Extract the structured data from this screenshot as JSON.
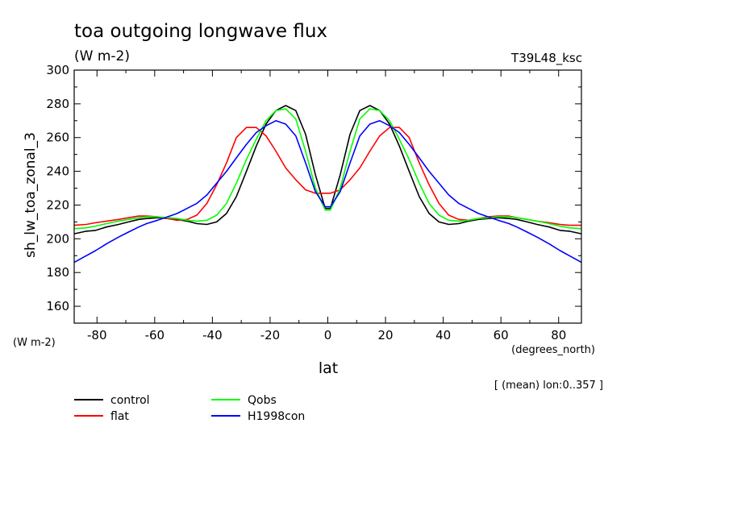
{
  "chart_data": {
    "type": "line",
    "title": "toa outgoing longwave flux",
    "units": "(W m-2)",
    "run_label": "T39L48_ksc",
    "ylabel": "sh_lw_toa_zonal_3",
    "y_units": "(W m-2)",
    "xlabel": "lat",
    "x_units": "(degrees_north)",
    "subtitle_note": "[ (mean) lon:0..357 ]",
    "xlim": [
      -87.9,
      87.9
    ],
    "ylim": [
      150,
      300
    ],
    "x_ticks": [
      -80,
      -60,
      -40,
      -20,
      0,
      20,
      40,
      60,
      80
    ],
    "y_ticks": [
      160,
      180,
      200,
      220,
      240,
      260,
      280,
      300
    ],
    "legend_position": "bottom-left",
    "x": [
      -87.9,
      -83.7,
      -80.5,
      -76.7,
      -72.5,
      -69.1,
      -65.5,
      -62.8,
      -59.0,
      -55.6,
      -52.2,
      -48.8,
      -45.4,
      -41.9,
      -38.5,
      -35.1,
      -31.7,
      -28.2,
      -24.8,
      -21.4,
      -18.0,
      -14.6,
      -11.1,
      -7.7,
      -4.3,
      -0.9,
      0.9,
      4.3,
      7.7,
      11.1,
      14.6,
      18.0,
      21.4,
      24.8,
      28.2,
      31.7,
      35.1,
      38.5,
      41.9,
      45.4,
      48.8,
      52.2,
      55.6,
      59.0,
      62.8,
      65.5,
      69.1,
      72.5,
      76.7,
      80.5,
      83.7,
      87.9
    ],
    "series": [
      {
        "name": "control",
        "color": "#000000",
        "values": [
          203,
          204.5,
          205,
          207,
          208.5,
          210,
          211.5,
          212,
          212.5,
          212,
          211.5,
          210.5,
          209,
          208.5,
          210,
          215,
          225,
          240,
          255,
          268,
          276,
          279,
          276,
          262,
          238,
          218,
          218,
          238,
          262,
          276,
          279,
          276,
          268,
          255,
          240,
          225,
          215,
          210,
          208.5,
          209,
          210.5,
          211.5,
          212,
          212.5,
          212,
          211.5,
          210,
          208.5,
          207,
          205,
          204.5,
          203
        ]
      },
      {
        "name": "flat",
        "color": "#ff0000",
        "values": [
          208,
          208.5,
          209.5,
          210.5,
          211.5,
          212.5,
          213.5,
          213.5,
          213,
          212,
          211,
          211.5,
          214,
          221,
          232,
          245,
          260,
          266,
          266,
          261,
          252,
          242,
          235,
          229,
          227,
          227,
          227,
          229,
          235,
          242,
          252,
          261,
          266,
          266,
          260,
          245,
          232,
          221,
          214,
          211.5,
          211,
          212,
          213,
          213.5,
          213.5,
          212.5,
          211.5,
          210.5,
          209.5,
          208.5,
          208,
          208
        ]
      },
      {
        "name": "Qobs",
        "color": "#00ff00",
        "values": [
          206,
          206.5,
          207.5,
          209,
          210.5,
          211.5,
          212.5,
          213,
          213,
          212.5,
          212,
          211,
          210.5,
          211,
          214,
          221,
          233,
          247,
          259,
          270,
          276,
          277,
          271,
          252,
          230,
          217,
          217,
          230,
          252,
          271,
          277,
          276,
          270,
          259,
          247,
          233,
          221,
          214,
          211,
          210.5,
          211,
          212,
          212.5,
          213,
          213,
          212.5,
          211.5,
          210.5,
          209,
          207.5,
          206.5,
          206
        ]
      },
      {
        "name": "H1998con",
        "color": "#0000ff",
        "values": [
          186,
          190,
          193,
          197,
          201,
          204,
          207,
          209,
          211,
          213,
          215,
          218,
          221,
          226,
          233,
          240,
          248,
          256,
          263,
          267,
          270,
          268,
          261,
          245,
          228,
          219,
          219,
          228,
          245,
          261,
          268,
          270,
          267,
          263,
          256,
          248,
          240,
          233,
          226,
          221,
          218,
          215,
          213,
          211,
          209,
          207,
          204,
          201,
          197,
          193,
          190,
          186
        ]
      }
    ]
  }
}
